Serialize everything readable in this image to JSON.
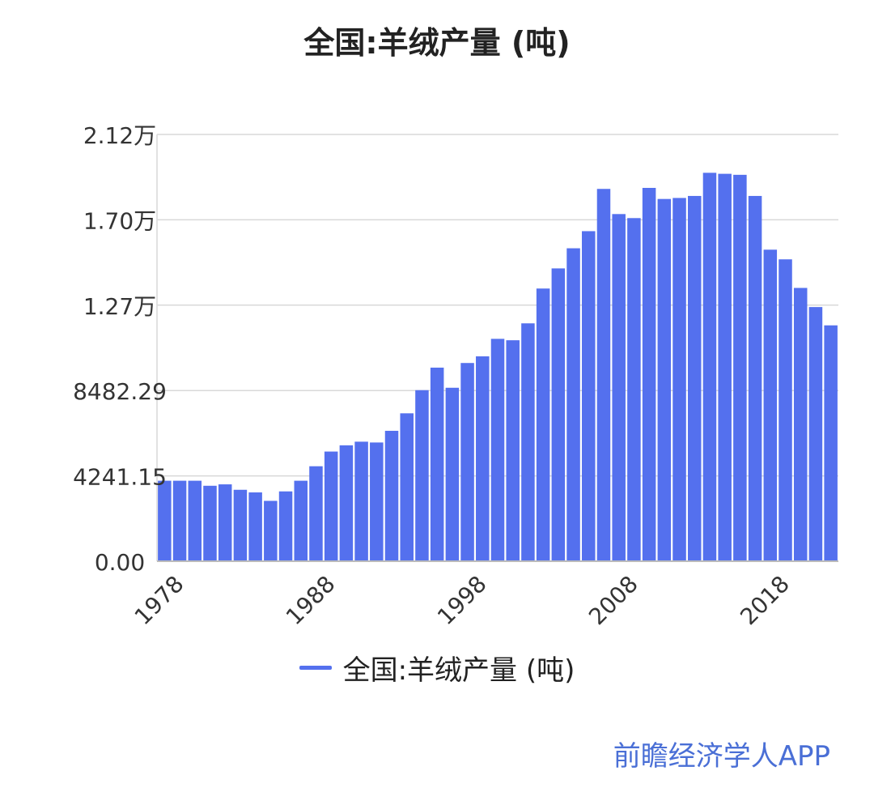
{
  "chart_data": {
    "type": "bar",
    "title": "全国:羊绒产量 (吨)",
    "xlabel": "",
    "ylabel": "",
    "ylim": [
      0,
      21206
    ],
    "y_ticks": [
      0,
      4241.15,
      8482.29,
      12723.44,
      16964.58,
      21205.73
    ],
    "y_tick_labels": [
      "0.00",
      "4241.15",
      "8482.29",
      "1.27万",
      "1.70万",
      "2.12万"
    ],
    "x_tick_labels": [
      "1978",
      "1988",
      "1998",
      "2008",
      "2018"
    ],
    "categories": [
      "1978",
      "1979",
      "1980",
      "1981",
      "1982",
      "1983",
      "1984",
      "1985",
      "1986",
      "1987",
      "1988",
      "1989",
      "1990",
      "1991",
      "1992",
      "1993",
      "1994",
      "1995",
      "1996",
      "1997",
      "1998",
      "1999",
      "2000",
      "2001",
      "2002",
      "2003",
      "2004",
      "2005",
      "2006",
      "2007",
      "2008",
      "2009",
      "2010",
      "2011",
      "2012",
      "2013",
      "2014",
      "2015",
      "2016",
      "2017",
      "2018",
      "2019",
      "2020",
      "2021",
      "2022"
    ],
    "series": [
      {
        "name": "全国:羊绒产量 (吨)",
        "color": "#5470ee",
        "values": [
          4000,
          4000,
          4000,
          3750,
          3820,
          3550,
          3420,
          3000,
          3470,
          4000,
          4720,
          5450,
          5760,
          5940,
          5900,
          6480,
          7350,
          8500,
          9620,
          8620,
          9850,
          10180,
          11050,
          10980,
          11820,
          13550,
          14550,
          15550,
          16400,
          18500,
          17250,
          17050,
          18550,
          18000,
          18050,
          18150,
          19300,
          19250,
          19200,
          18150,
          15480,
          15000,
          13580,
          12630,
          11720
        ]
      }
    ],
    "grid": true,
    "legend": "bottom-center"
  },
  "legend_label": "全国:羊绒产量 (吨)",
  "watermark": "前瞻经济学人APP"
}
